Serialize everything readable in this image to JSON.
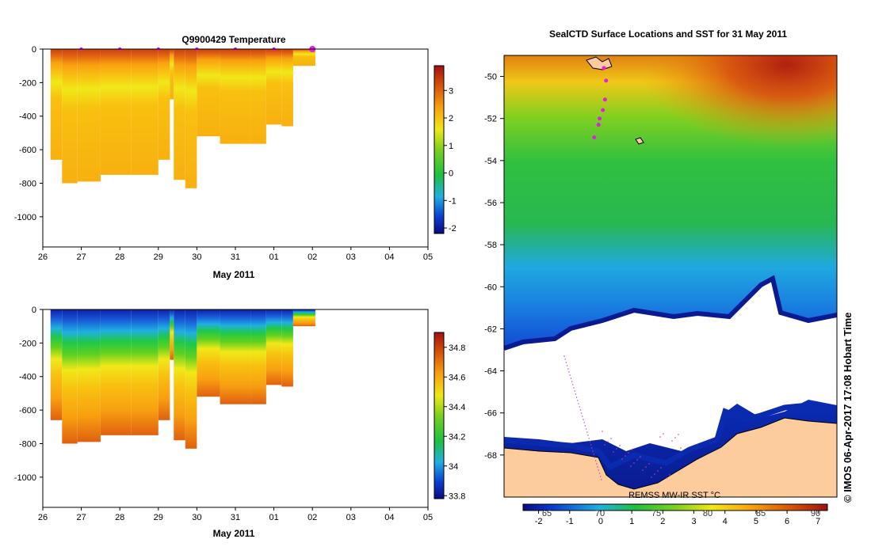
{
  "panel_temp": {
    "title": "Q9900429  Temperature",
    "xlabel": "May 2011",
    "chart_data": {
      "type": "heatmap",
      "title": "Q9900429  Temperature",
      "xlabel": "May 2011",
      "x_ticks": [
        "26",
        "27",
        "28",
        "29",
        "30",
        "31",
        "01",
        "02",
        "03",
        "04",
        "05"
      ],
      "y_ticks": [
        0,
        -200,
        -400,
        -600,
        -800,
        -1000
      ],
      "ylim": [
        -1180,
        0
      ],
      "colorbar": {
        "min": -2.2,
        "max": 3.9,
        "ticks": [
          3,
          2,
          1,
          0,
          -1,
          -2
        ]
      },
      "profiles": [
        {
          "day": 26.2,
          "max_depth": 660
        },
        {
          "day": 26.5,
          "max_depth": 800
        },
        {
          "day": 26.9,
          "max_depth": 790
        },
        {
          "day": 27.5,
          "max_depth": 750
        },
        {
          "day": 28.3,
          "max_depth": 750
        },
        {
          "day": 29.0,
          "max_depth": 660
        },
        {
          "day": 29.3,
          "max_depth": 300
        },
        {
          "day": 29.4,
          "max_depth": 780
        },
        {
          "day": 29.7,
          "max_depth": 830
        },
        {
          "day": 30.0,
          "max_depth": 520
        },
        {
          "day": 30.6,
          "max_depth": 565
        },
        {
          "day": 31.4,
          "max_depth": 565
        },
        {
          "day": 31.8,
          "max_depth": 450
        },
        {
          "day": 32.2,
          "max_depth": 460
        },
        {
          "day": 32.5,
          "max_depth": 100
        }
      ],
      "surface_markers": [
        27.0,
        28.0,
        29.0,
        30.0,
        31.0,
        32.0,
        33.0
      ]
    }
  },
  "panel_sal": {
    "xlabel": "May 2011",
    "chart_data": {
      "type": "heatmap",
      "title": "",
      "xlabel": "May 2011",
      "x_ticks": [
        "26",
        "27",
        "28",
        "29",
        "30",
        "31",
        "01",
        "02",
        "03",
        "04",
        "05"
      ],
      "y_ticks": [
        0,
        -200,
        -400,
        -600,
        -800,
        -1000
      ],
      "ylim": [
        -1180,
        0
      ],
      "colorbar": {
        "min": 33.78,
        "max": 34.9,
        "ticks": [
          "34.8",
          "34.6",
          "34.4",
          "34.2",
          "34",
          "33.8"
        ]
      }
    }
  },
  "map": {
    "title": "SealCTD Surface Locations and SST for 31 May 2011",
    "credit": "©  IMOS 06-Apr-2017 17:08 Hobart Time",
    "sst_label": "REMSS MW-IR SST °C",
    "chart_data": {
      "type": "heatmap",
      "title": "SealCTD Surface Locations and SST for 31 May 2011",
      "lat_ticks": [
        "-50",
        "-52",
        "-54",
        "-56",
        "-58",
        "-60",
        "-62",
        "-64",
        "-66",
        "-68"
      ],
      "lon_ticks": [
        "65",
        "70",
        "75",
        "80",
        "85",
        "90"
      ],
      "colorbar": {
        "min": -2.5,
        "max": 7.3,
        "ticks": [
          "-2",
          "-1",
          "0",
          "1",
          "2",
          "3",
          "4",
          "5",
          "6",
          "7"
        ]
      },
      "seal_positions": [
        {
          "lat": -49.6,
          "lon": 70.3
        },
        {
          "lat": -50.2,
          "lon": 70.5
        },
        {
          "lat": -51.1,
          "lon": 70.4
        },
        {
          "lat": -51.6,
          "lon": 70.2
        },
        {
          "lat": -52.0,
          "lon": 69.9
        },
        {
          "lat": -52.3,
          "lon": 69.8
        },
        {
          "lat": -52.9,
          "lon": 69.4
        }
      ]
    }
  }
}
